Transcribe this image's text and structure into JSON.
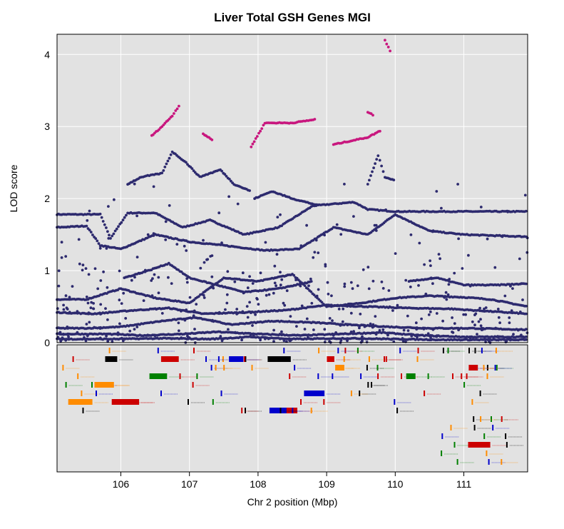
{
  "chart_data": {
    "type": "scatter",
    "title": "Liver Total GSH Genes MGI",
    "xlabel": "Chr 2 position (Mbp)",
    "ylabel": "LOD score",
    "xlim": [
      105.07,
      111.93
    ],
    "ylim": [
      0,
      4.28
    ],
    "x_ticks": [
      "106",
      "107",
      "108",
      "109",
      "110",
      "111"
    ],
    "y_ticks": [
      "0",
      "1",
      "2",
      "3",
      "4"
    ],
    "grid": true,
    "colors": {
      "background": "#e2e2e2",
      "grid": "#ffffff",
      "points": "#2d2a6e",
      "highlight": "#c8177e",
      "gene_colors": [
        "#000000",
        "#cc0000",
        "#0000cc",
        "#ff8c00",
        "#008000"
      ]
    },
    "series": [
      {
        "color": "#2d2a6e",
        "tracks": [
          [
            [
              105.07,
              1.78
            ],
            [
              105.7,
              1.78
            ],
            [
              105.85,
              1.45
            ],
            [
              106.1,
              1.8
            ],
            [
              106.5,
              1.8
            ],
            [
              106.9,
              1.6
            ],
            [
              107.3,
              1.7
            ],
            [
              107.8,
              1.5
            ],
            [
              108.3,
              1.6
            ],
            [
              108.8,
              1.9
            ],
            [
              109.4,
              1.95
            ],
            [
              109.6,
              1.85
            ],
            [
              110.0,
              1.82
            ],
            [
              111.93,
              1.82
            ]
          ],
          [
            [
              105.07,
              1.6
            ],
            [
              105.5,
              1.62
            ],
            [
              105.7,
              1.35
            ],
            [
              106.0,
              1.3
            ],
            [
              106.5,
              1.5
            ],
            [
              107.0,
              1.4
            ],
            [
              107.5,
              1.35
            ],
            [
              108.1,
              1.28
            ],
            [
              108.6,
              1.3
            ],
            [
              109.1,
              1.6
            ],
            [
              109.6,
              1.5
            ],
            [
              110.0,
              1.78
            ],
            [
              110.5,
              1.55
            ],
            [
              111.0,
              1.5
            ],
            [
              111.93,
              1.47
            ]
          ],
          [
            [
              105.07,
              0.6
            ],
            [
              105.5,
              0.6
            ],
            [
              106.0,
              0.75
            ],
            [
              106.5,
              0.62
            ],
            [
              107.0,
              0.55
            ],
            [
              107.5,
              0.9
            ],
            [
              108.0,
              0.85
            ],
            [
              108.5,
              0.95
            ],
            [
              109.0,
              0.5
            ],
            [
              109.5,
              0.55
            ],
            [
              110.0,
              0.62
            ],
            [
              110.5,
              0.65
            ],
            [
              111.0,
              0.63
            ],
            [
              111.4,
              0.6
            ],
            [
              111.93,
              0.5
            ]
          ],
          [
            [
              105.07,
              0.42
            ],
            [
              105.6,
              0.4
            ],
            [
              106.2,
              0.45
            ],
            [
              106.7,
              0.48
            ],
            [
              107.2,
              0.4
            ],
            [
              107.8,
              0.42
            ],
            [
              108.4,
              0.45
            ],
            [
              109.0,
              0.52
            ],
            [
              109.6,
              0.5
            ],
            [
              110.2,
              0.48
            ],
            [
              110.8,
              0.47
            ],
            [
              111.3,
              0.44
            ],
            [
              111.93,
              0.4
            ]
          ],
          [
            [
              105.07,
              0.2
            ],
            [
              105.5,
              0.2
            ],
            [
              106.0,
              0.22
            ],
            [
              106.6,
              0.3
            ],
            [
              107.1,
              0.35
            ],
            [
              107.6,
              0.25
            ],
            [
              108.2,
              0.3
            ],
            [
              108.8,
              0.28
            ],
            [
              109.3,
              0.25
            ],
            [
              109.9,
              0.22
            ],
            [
              110.5,
              0.2
            ],
            [
              111.1,
              0.2
            ],
            [
              111.93,
              0.18
            ]
          ],
          [
            [
              105.07,
              0.12
            ],
            [
              105.8,
              0.12
            ],
            [
              106.3,
              0.1
            ],
            [
              106.9,
              0.12
            ],
            [
              107.4,
              0.15
            ],
            [
              108.0,
              0.12
            ],
            [
              108.6,
              0.1
            ],
            [
              109.2,
              0.12
            ],
            [
              109.8,
              0.14
            ],
            [
              110.4,
              0.1
            ],
            [
              111.0,
              0.08
            ],
            [
              111.93,
              0.08
            ]
          ],
          [
            [
              105.07,
              0.05
            ],
            [
              105.9,
              0.05
            ],
            [
              106.6,
              0.06
            ],
            [
              107.3,
              0.05
            ],
            [
              107.9,
              0.08
            ],
            [
              108.5,
              0.05
            ],
            [
              109.3,
              0.06
            ],
            [
              110.0,
              0.05
            ],
            [
              110.7,
              0.04
            ],
            [
              111.93,
              0.04
            ]
          ],
          [
            [
              106.1,
              2.2
            ],
            [
              106.3,
              2.3
            ],
            [
              106.6,
              2.35
            ],
            [
              106.75,
              2.65
            ],
            [
              106.95,
              2.5
            ],
            [
              107.15,
              2.3
            ],
            [
              107.45,
              2.4
            ],
            [
              107.65,
              2.2
            ],
            [
              107.9,
              2.1
            ]
          ],
          [
            [
              107.95,
              2.0
            ],
            [
              108.2,
              2.1
            ],
            [
              108.5,
              2.0
            ],
            [
              108.7,
              1.95
            ],
            [
              108.9,
              1.9
            ]
          ],
          [
            [
              109.6,
              2.2
            ],
            [
              109.75,
              2.6
            ],
            [
              109.85,
              2.3
            ],
            [
              110.0,
              2.25
            ]
          ],
          [
            [
              106.05,
              0.9
            ],
            [
              106.4,
              1.0
            ],
            [
              106.7,
              1.1
            ],
            [
              107.0,
              0.9
            ],
            [
              107.4,
              0.8
            ],
            [
              107.8,
              0.7
            ],
            [
              108.3,
              0.75
            ],
            [
              108.8,
              0.85
            ]
          ],
          [
            [
              110.2,
              0.85
            ],
            [
              110.6,
              0.9
            ],
            [
              111.0,
              0.8
            ],
            [
              111.5,
              0.8
            ],
            [
              111.93,
              0.82
            ]
          ]
        ]
      },
      {
        "color": "#c8177e",
        "tracks": [
          [
            [
              106.45,
              2.87
            ],
            [
              106.6,
              3.0
            ],
            [
              106.75,
              3.15
            ],
            [
              106.87,
              3.32
            ]
          ],
          [
            [
              107.2,
              2.9
            ],
            [
              107.35,
              2.8
            ]
          ],
          [
            [
              107.9,
              2.72
            ],
            [
              108.1,
              3.05
            ],
            [
              108.5,
              3.05
            ],
            [
              108.85,
              3.1
            ]
          ],
          [
            [
              109.1,
              2.75
            ],
            [
              109.35,
              2.8
            ],
            [
              109.6,
              2.85
            ],
            [
              109.8,
              2.95
            ]
          ],
          [
            [
              109.85,
              4.2
            ],
            [
              109.95,
              4.0
            ]
          ],
          [
            [
              109.6,
              3.2
            ],
            [
              109.7,
              3.15
            ]
          ]
        ]
      }
    ]
  }
}
